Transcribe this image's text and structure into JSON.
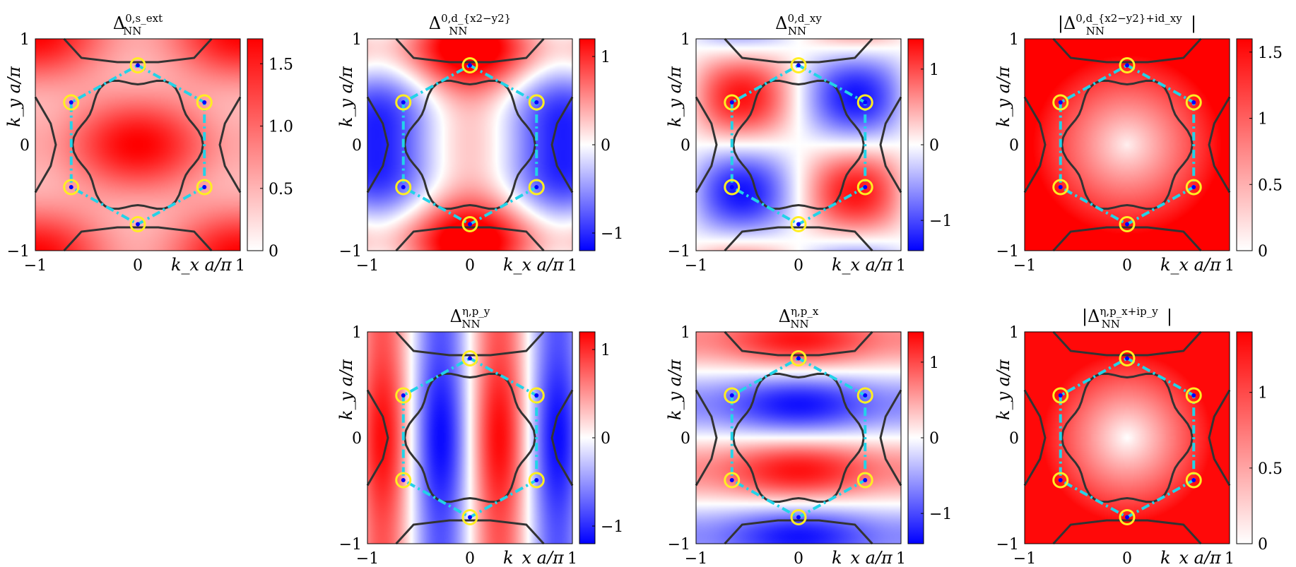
{
  "figure": {
    "colors": {
      "positive": "#ff0000",
      "zero": "#ffffff",
      "negative": "#0000ff",
      "fermi_surface": "#333333",
      "zone_boundary": "#22d3e8",
      "nodes": "#ffee22",
      "node_center": "#0000ff"
    }
  },
  "chart_data": [
    {
      "id": "s_ext",
      "type": "heatmap",
      "title_symbol": "Δ",
      "title_sub": "NN",
      "title_sup": "0,s_ext",
      "abs": false,
      "pattern": "s_ext",
      "xlabel": "k_x a/π",
      "ylabel": "k_y a/π",
      "xlim": [
        -1,
        1
      ],
      "ylim": [
        -1,
        1
      ],
      "xticks": [
        "−1",
        "0",
        "1"
      ],
      "yticks": [
        "−1",
        "0",
        "1"
      ],
      "colorbar": {
        "min": 0,
        "max": 1.7,
        "ticks": [
          0,
          0.5,
          1.0,
          1.5
        ],
        "ticklabels": [
          "0",
          "0.5",
          "1.0",
          "1.5"
        ],
        "diverging": false
      }
    },
    {
      "id": "d_x2y2",
      "type": "heatmap",
      "title_symbol": "Δ",
      "title_sub": "NN",
      "title_sup": "0,d_{x2−y2}",
      "abs": false,
      "pattern": "d_x2y2",
      "xlabel": "k_x a/π",
      "ylabel": "k_y a/π",
      "xlim": [
        -1,
        1
      ],
      "ylim": [
        -1,
        1
      ],
      "xticks": [
        "−1",
        "0",
        "1"
      ],
      "yticks": [
        "−1",
        "0",
        "1"
      ],
      "colorbar": {
        "min": -1.2,
        "max": 1.2,
        "ticks": [
          -1,
          0,
          1
        ],
        "ticklabels": [
          "−1",
          "0",
          "1"
        ],
        "diverging": true
      }
    },
    {
      "id": "d_xy",
      "type": "heatmap",
      "title_symbol": "Δ",
      "title_sub": "NN",
      "title_sup": "0,d_xy",
      "abs": false,
      "pattern": "d_xy",
      "xlabel": "k_x a/π",
      "ylabel": "k_y a/π",
      "xlim": [
        -1,
        1
      ],
      "ylim": [
        -1,
        1
      ],
      "xticks": [
        "−1",
        "0",
        "1"
      ],
      "yticks": [
        "−1",
        "0",
        "1"
      ],
      "colorbar": {
        "min": -1.4,
        "max": 1.4,
        "ticks": [
          -1,
          0,
          1
        ],
        "ticklabels": [
          "−1",
          "0",
          "1"
        ],
        "diverging": true
      }
    },
    {
      "id": "d_chiral",
      "type": "heatmap",
      "title_symbol": "Δ",
      "title_sub": "NN",
      "title_sup": "0,d_{x2−y2}+id_xy",
      "abs": true,
      "pattern": "d_chiral",
      "xlabel": "k_x a/π",
      "ylabel": "k_y a/π",
      "xlim": [
        -1,
        1
      ],
      "ylim": [
        -1,
        1
      ],
      "xticks": [
        "−1",
        "0",
        "1"
      ],
      "yticks": [
        "−1",
        "0",
        "1"
      ],
      "colorbar": {
        "min": 0,
        "max": 1.6,
        "ticks": [
          0,
          0.5,
          1.0,
          1.5
        ],
        "ticklabels": [
          "0",
          "0.5",
          "1",
          "1.5"
        ],
        "diverging": false
      }
    },
    {
      "id": "p_y",
      "type": "heatmap",
      "title_symbol": "Δ",
      "title_sub": "NN",
      "title_sup": "η,p_y",
      "abs": false,
      "pattern": "p_y",
      "xlabel": "k_x a/π",
      "ylabel": "k_y a/π",
      "xlim": [
        -1,
        1
      ],
      "ylim": [
        -1,
        1
      ],
      "xticks": [
        "−1",
        "0",
        "1"
      ],
      "yticks": [
        "−1",
        "0",
        "1"
      ],
      "colorbar": {
        "min": -1.2,
        "max": 1.2,
        "ticks": [
          -1,
          0,
          1
        ],
        "ticklabels": [
          "−1",
          "0",
          "1"
        ],
        "diverging": true
      }
    },
    {
      "id": "p_x",
      "type": "heatmap",
      "title_symbol": "Δ",
      "title_sub": "NN",
      "title_sup": "η,p_x",
      "abs": false,
      "pattern": "p_x",
      "xlabel": "k_x a/π",
      "ylabel": "k_y a/π",
      "xlim": [
        -1,
        1
      ],
      "ylim": [
        -1,
        1
      ],
      "xticks": [
        "−1",
        "0",
        "1"
      ],
      "yticks": [
        "−1",
        "0",
        "1"
      ],
      "colorbar": {
        "min": -1.4,
        "max": 1.4,
        "ticks": [
          -1,
          0,
          1
        ],
        "ticklabels": [
          "−1",
          "0",
          "1"
        ],
        "diverging": true
      }
    },
    {
      "id": "p_chiral",
      "type": "heatmap",
      "title_symbol": "Δ",
      "title_sub": "NN",
      "title_sup": "η,p_x+ip_y",
      "abs": true,
      "pattern": "p_chiral",
      "xlabel": "k_x a/π",
      "ylabel": "k_y a/π",
      "xlim": [
        -1,
        1
      ],
      "ylim": [
        -1,
        1
      ],
      "xticks": [
        "−1",
        "0",
        "1"
      ],
      "yticks": [
        "−1",
        "0",
        "1"
      ],
      "colorbar": {
        "min": 0,
        "max": 1.4,
        "ticks": [
          0,
          0.5,
          1.0
        ],
        "ticklabels": [
          "0",
          "0.5",
          "1"
        ],
        "diverging": false
      }
    }
  ]
}
